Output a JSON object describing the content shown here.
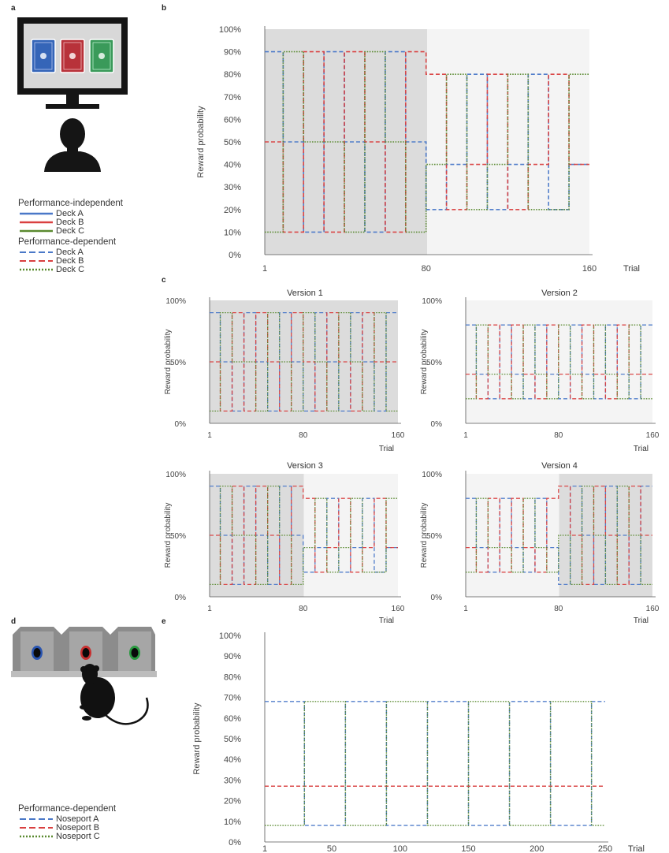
{
  "panels": {
    "a": "a",
    "b": "b",
    "c": "c",
    "d": "d",
    "e": "e"
  },
  "colors": {
    "deck_a": "#4a78c8",
    "deck_b": "#d94040",
    "deck_c": "#5a8a30",
    "shade": "#dcdcdc",
    "light": "#f4f4f4"
  },
  "legend_a": {
    "independent_title": "Performance-independent",
    "independent": [
      "Deck A",
      "Deck B",
      "Deck C"
    ],
    "dependent_title": "Performance-dependent",
    "dependent": [
      "Deck A",
      "Deck B",
      "Deck C"
    ]
  },
  "legend_d": {
    "dependent_title": "Performance-dependent",
    "dependent": [
      "Noseport A",
      "Noseport B",
      "Noseport C"
    ]
  },
  "chart_data": [
    {
      "id": "b",
      "type": "line",
      "title": "",
      "xlabel": "Trial",
      "ylabel": "Reward probability",
      "xlim": [
        1,
        160
      ],
      "ylim": [
        0,
        100
      ],
      "xticks": [
        "1",
        "80",
        "160"
      ],
      "yticks": [
        "0%",
        "10%",
        "20%",
        "30%",
        "40%",
        "50%",
        "60%",
        "70%",
        "80%",
        "90%",
        "100%"
      ],
      "switch_trials": [
        10,
        20,
        30,
        40,
        50,
        60,
        70,
        80,
        90,
        100,
        110,
        120,
        130,
        140,
        150
      ],
      "series": [
        {
          "name": "Deck A",
          "values": [
            90,
            50,
            10,
            90,
            50,
            10,
            90,
            50,
            20,
            40,
            80,
            20,
            40,
            80,
            20,
            40
          ]
        },
        {
          "name": "Deck B",
          "values": [
            50,
            10,
            90,
            10,
            90,
            50,
            10,
            90,
            80,
            20,
            40,
            80,
            20,
            40,
            80,
            40
          ]
        },
        {
          "name": "Deck C",
          "values": [
            10,
            90,
            50,
            50,
            10,
            90,
            50,
            10,
            40,
            80,
            20,
            40,
            80,
            20,
            20,
            80
          ]
        }
      ]
    },
    {
      "id": "c1",
      "type": "line",
      "title": "Version 1",
      "xlabel": "Trial",
      "ylabel": "Reward probability",
      "xlim": [
        1,
        160
      ],
      "ylim": [
        0,
        100
      ],
      "xticks": [
        "1",
        "80",
        "160"
      ],
      "yticks": [
        "0%",
        "50%",
        "100%"
      ],
      "switch_trials": [
        10,
        20,
        30,
        40,
        50,
        60,
        70,
        80,
        90,
        100,
        110,
        120,
        130,
        140,
        150
      ],
      "series": [
        {
          "name": "Deck A",
          "values": [
            90,
            50,
            10,
            90,
            50,
            10,
            90,
            50,
            10,
            90,
            50,
            10,
            90,
            50,
            10,
            90
          ]
        },
        {
          "name": "Deck B",
          "values": [
            50,
            10,
            90,
            10,
            90,
            50,
            10,
            90,
            50,
            10,
            90,
            50,
            10,
            90,
            50,
            50
          ]
        },
        {
          "name": "Deck C",
          "values": [
            10,
            90,
            50,
            50,
            10,
            90,
            50,
            10,
            90,
            50,
            10,
            90,
            50,
            10,
            90,
            10
          ]
        }
      ]
    },
    {
      "id": "c2",
      "type": "line",
      "title": "Version 2",
      "xlabel": "Trial",
      "ylabel": "Reward probability",
      "xlim": [
        1,
        160
      ],
      "ylim": [
        0,
        100
      ],
      "xticks": [
        "1",
        "80",
        "160"
      ],
      "yticks": [
        "0%",
        "50%",
        "100%"
      ],
      "switch_trials": [
        10,
        20,
        30,
        40,
        50,
        60,
        70,
        80,
        90,
        100,
        110,
        120,
        130,
        140,
        150
      ],
      "series": [
        {
          "name": "Deck A",
          "values": [
            80,
            40,
            20,
            80,
            40,
            20,
            80,
            40,
            20,
            80,
            40,
            20,
            80,
            40,
            20,
            80
          ]
        },
        {
          "name": "Deck B",
          "values": [
            40,
            20,
            80,
            20,
            80,
            40,
            20,
            80,
            40,
            20,
            80,
            40,
            20,
            80,
            40,
            40
          ]
        },
        {
          "name": "Deck C",
          "values": [
            20,
            80,
            40,
            40,
            20,
            80,
            40,
            20,
            80,
            40,
            20,
            80,
            40,
            20,
            80,
            20
          ]
        }
      ]
    },
    {
      "id": "c3",
      "type": "line",
      "title": "Version 3",
      "xlabel": "Trial",
      "ylabel": "Reward probability",
      "xlim": [
        1,
        160
      ],
      "ylim": [
        0,
        100
      ],
      "xticks": [
        "1",
        "80",
        "160"
      ],
      "yticks": [
        "0%",
        "50%",
        "100%"
      ],
      "switch_trials": [
        10,
        20,
        30,
        40,
        50,
        60,
        70,
        80,
        90,
        100,
        110,
        120,
        130,
        140,
        150
      ],
      "series": [
        {
          "name": "Deck A",
          "values": [
            90,
            50,
            10,
            90,
            50,
            10,
            90,
            50,
            20,
            40,
            80,
            20,
            40,
            80,
            20,
            40
          ]
        },
        {
          "name": "Deck B",
          "values": [
            50,
            10,
            90,
            10,
            90,
            50,
            10,
            90,
            80,
            20,
            40,
            80,
            20,
            40,
            80,
            40
          ]
        },
        {
          "name": "Deck C",
          "values": [
            10,
            90,
            50,
            50,
            10,
            90,
            50,
            10,
            40,
            80,
            20,
            40,
            80,
            20,
            20,
            80
          ]
        }
      ]
    },
    {
      "id": "c4",
      "type": "line",
      "title": "Version 4",
      "xlabel": "Trial",
      "ylabel": "Reward probability",
      "xlim": [
        1,
        160
      ],
      "ylim": [
        0,
        100
      ],
      "xticks": [
        "1",
        "80",
        "160"
      ],
      "yticks": [
        "0%",
        "50%",
        "100%"
      ],
      "switch_trials": [
        10,
        20,
        30,
        40,
        50,
        60,
        70,
        80,
        90,
        100,
        110,
        120,
        130,
        140,
        150
      ],
      "series": [
        {
          "name": "Deck A",
          "values": [
            80,
            40,
            20,
            80,
            40,
            20,
            80,
            40,
            10,
            90,
            50,
            10,
            90,
            50,
            10,
            90
          ]
        },
        {
          "name": "Deck B",
          "values": [
            40,
            20,
            80,
            20,
            80,
            40,
            20,
            80,
            90,
            50,
            10,
            90,
            50,
            10,
            90,
            50
          ]
        },
        {
          "name": "Deck C",
          "values": [
            20,
            80,
            40,
            40,
            20,
            80,
            40,
            20,
            50,
            10,
            90,
            50,
            10,
            90,
            50,
            10
          ]
        }
      ]
    },
    {
      "id": "e",
      "type": "line",
      "title": "",
      "xlabel": "Trial",
      "ylabel": "Reward probability",
      "xlim": [
        1,
        250
      ],
      "ylim": [
        0,
        100
      ],
      "xticks": [
        "1",
        "50",
        "100",
        "150",
        "200",
        "250"
      ],
      "yticks": [
        "0%",
        "10%",
        "20%",
        "30%",
        "40%",
        "50%",
        "60%",
        "70%",
        "80%",
        "90%",
        "100%"
      ],
      "switch_trials": [
        30,
        60,
        90,
        120,
        150,
        180,
        210,
        240
      ],
      "series": [
        {
          "name": "Noseport A",
          "values": [
            68,
            8,
            68,
            8,
            68,
            8,
            68,
            8,
            68
          ]
        },
        {
          "name": "Noseport B",
          "values": [
            27,
            27,
            27,
            27,
            27,
            27,
            27,
            27,
            27
          ]
        },
        {
          "name": "Noseport C",
          "values": [
            8,
            68,
            8,
            68,
            8,
            68,
            8,
            68,
            8
          ]
        }
      ]
    }
  ]
}
